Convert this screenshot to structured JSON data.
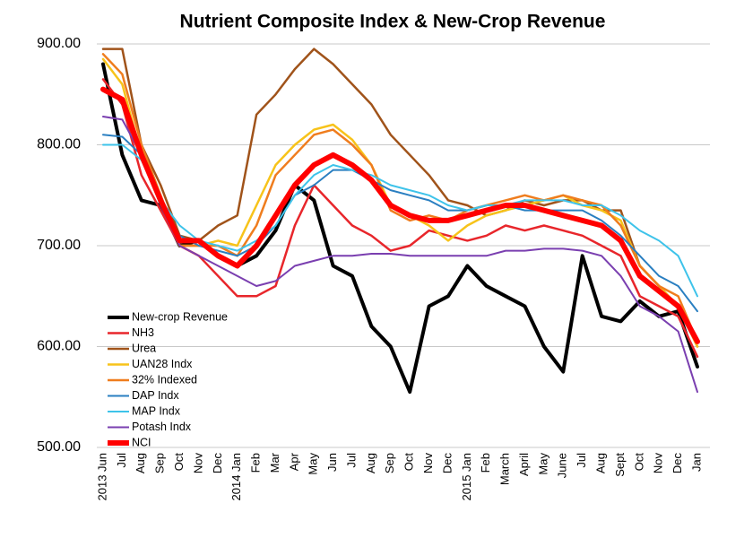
{
  "chart_data": {
    "type": "line",
    "title": "Nutrient Composite Index & New-Crop Revenue",
    "categories": [
      "2013 Jun",
      "Jul",
      "Aug",
      "Sep",
      "Oct",
      "Nov",
      "Dec",
      "2014 Jan",
      "Feb",
      "Mar",
      "Apr",
      "May",
      "Jun",
      "Jul",
      "Aug",
      "Sep",
      "Oct",
      "Nov",
      "Dec",
      "2015 Jan",
      "Feb",
      "March",
      "April",
      "May",
      "June",
      "Jul",
      "Aug",
      "Sept",
      "Oct",
      "Nov",
      "Dec",
      "Jan"
    ],
    "ylim": [
      500,
      900
    ],
    "yticks": [
      {
        "value": 500,
        "label": "500.00"
      },
      {
        "value": 600,
        "label": "600.00"
      },
      {
        "value": 700,
        "label": "700.00"
      },
      {
        "value": 800,
        "label": "800.00"
      },
      {
        "value": 900,
        "label": "900.00"
      }
    ],
    "grid": true,
    "legend": "left",
    "series": [
      {
        "name": "New-crop Revenue",
        "color": "#000000",
        "width": 4,
        "values": [
          880,
          790,
          745,
          740,
          700,
          705,
          690,
          680,
          690,
          715,
          760,
          745,
          680,
          670,
          620,
          600,
          555,
          640,
          650,
          680,
          660,
          650,
          640,
          600,
          575,
          690,
          630,
          625,
          645,
          630,
          635,
          580
        ]
      },
      {
        "name": "NH3",
        "color": "#e8262b",
        "width": 2.5,
        "values": [
          865,
          840,
          770,
          735,
          700,
          690,
          670,
          650,
          650,
          660,
          720,
          760,
          740,
          720,
          710,
          695,
          700,
          715,
          710,
          705,
          710,
          720,
          715,
          720,
          715,
          710,
          700,
          690,
          650,
          640,
          630,
          590
        ]
      },
      {
        "name": "Urea",
        "color": "#a0531a",
        "width": 2.5,
        "values": [
          895,
          895,
          800,
          760,
          710,
          705,
          720,
          730,
          830,
          850,
          875,
          895,
          880,
          860,
          840,
          810,
          790,
          770,
          745,
          740,
          730,
          735,
          745,
          740,
          745,
          745,
          735,
          735,
          680,
          660,
          640,
          600
        ]
      },
      {
        "name": "UAN28 Indx",
        "color": "#f7c31a",
        "width": 2.5,
        "values": [
          885,
          860,
          790,
          750,
          700,
          700,
          705,
          700,
          740,
          780,
          800,
          815,
          820,
          805,
          780,
          740,
          730,
          720,
          705,
          720,
          730,
          735,
          740,
          745,
          750,
          740,
          735,
          725,
          680,
          660,
          640,
          600
        ]
      },
      {
        "name": "32% Indexed",
        "color": "#ef7d1e",
        "width": 2.5,
        "values": [
          890,
          870,
          800,
          750,
          700,
          700,
          700,
          690,
          720,
          770,
          790,
          810,
          815,
          800,
          780,
          735,
          725,
          730,
          725,
          735,
          740,
          745,
          750,
          745,
          750,
          745,
          740,
          720,
          680,
          660,
          650,
          605
        ]
      },
      {
        "name": "DAP Indx",
        "color": "#2a7fc1",
        "width": 2,
        "values": [
          810,
          808,
          790,
          740,
          710,
          700,
          695,
          690,
          700,
          720,
          750,
          760,
          775,
          775,
          765,
          755,
          750,
          745,
          735,
          735,
          740,
          740,
          735,
          735,
          735,
          735,
          725,
          710,
          690,
          670,
          660,
          635
        ]
      },
      {
        "name": "MAP Indx",
        "color": "#3ec3ea",
        "width": 2,
        "values": [
          800,
          800,
          785,
          745,
          720,
          705,
          700,
          695,
          705,
          720,
          750,
          770,
          780,
          775,
          770,
          760,
          755,
          750,
          740,
          735,
          740,
          740,
          745,
          745,
          745,
          740,
          740,
          730,
          715,
          705,
          690,
          650
        ]
      },
      {
        "name": "Potash Indx",
        "color": "#7a3fb0",
        "width": 2,
        "values": [
          828,
          825,
          790,
          740,
          700,
          690,
          680,
          670,
          660,
          665,
          680,
          685,
          690,
          690,
          692,
          692,
          690,
          690,
          690,
          690,
          690,
          695,
          695,
          697,
          697,
          695,
          690,
          670,
          640,
          630,
          615,
          555
        ]
      },
      {
        "name": "NCI",
        "color": "#ff0000",
        "width": 6,
        "values": [
          855,
          845,
          790,
          745,
          705,
          705,
          690,
          680,
          700,
          730,
          760,
          780,
          790,
          780,
          765,
          740,
          730,
          725,
          725,
          730,
          735,
          740,
          740,
          735,
          730,
          725,
          720,
          705,
          670,
          655,
          640,
          605
        ]
      }
    ]
  }
}
